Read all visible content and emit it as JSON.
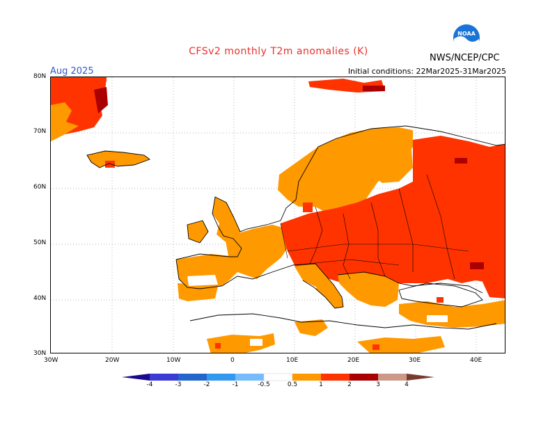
{
  "header": {
    "title": "CFSv2 monthly T2m anomalies (K)",
    "agency": "NWS/NCEP/CPC",
    "logo_text": "NOAA",
    "period": "Aug 2025",
    "initial_conditions": "Initial conditions: 22Mar2025-31Mar2025"
  },
  "axes": {
    "lat_labels": [
      "80N",
      "70N",
      "60N",
      "50N",
      "40N",
      "30N"
    ],
    "lon_labels": [
      "30W",
      "20W",
      "10W",
      "0",
      "10E",
      "20E",
      "30E",
      "40E"
    ]
  },
  "colorbar": {
    "labels": [
      "-4",
      "-3",
      "-2",
      "-1",
      "-0.5",
      "0.5",
      "1",
      "2",
      "3",
      "4"
    ],
    "colors": [
      "#1a0a8c",
      "#3b3bd6",
      "#2266cc",
      "#3399ee",
      "#77bbff",
      "#ffffff",
      "#ff9900",
      "#ff3300",
      "#aa0000",
      "#cc9988",
      "#7a3b2e"
    ]
  },
  "anomaly_colors": {
    "moderate": "#ff9900",
    "strong": "#ff3300",
    "very_strong": "#aa0000"
  }
}
